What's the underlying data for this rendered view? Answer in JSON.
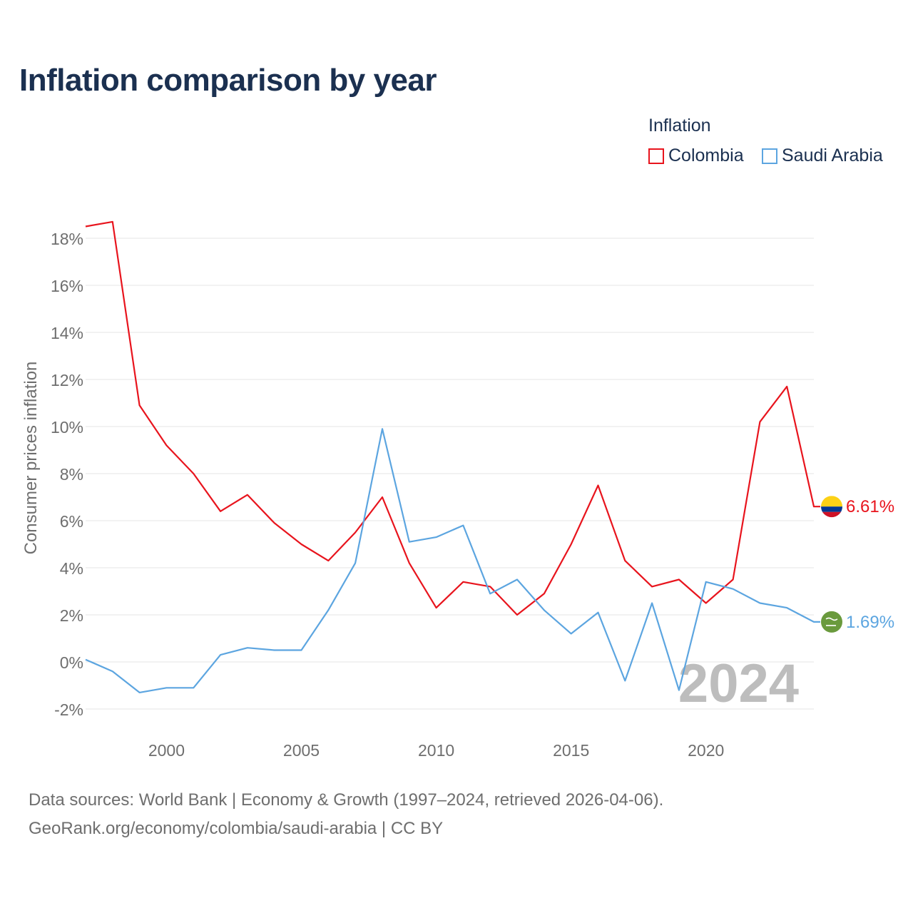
{
  "title": "Inflation comparison by year",
  "legend": {
    "title": "Inflation",
    "items": [
      {
        "label": "Colombia",
        "color": "#e8141d"
      },
      {
        "label": "Saudi Arabia",
        "color": "#5ca5e0"
      }
    ]
  },
  "chart_data": {
    "type": "line",
    "title": "Inflation comparison by year",
    "xlabel": "",
    "ylabel": "Consumer prices inflation",
    "xlim": [
      1997,
      2024
    ],
    "ylim": [
      -2,
      18
    ],
    "x_ticks": [
      2000,
      2005,
      2010,
      2015,
      2020
    ],
    "y_ticks": [
      -2,
      0,
      2,
      4,
      6,
      8,
      10,
      12,
      14,
      16,
      18
    ],
    "y_tick_labels": [
      "-2%",
      "0%",
      "2%",
      "4%",
      "6%",
      "8%",
      "10%",
      "12%",
      "14%",
      "16%",
      "18%"
    ],
    "grid": "horizontal",
    "year_watermark": "2024",
    "x": [
      1997,
      1998,
      1999,
      2000,
      2001,
      2002,
      2003,
      2004,
      2005,
      2006,
      2007,
      2008,
      2009,
      2010,
      2011,
      2012,
      2013,
      2014,
      2015,
      2016,
      2017,
      2018,
      2019,
      2020,
      2021,
      2022,
      2023,
      2024
    ],
    "series": [
      {
        "name": "Colombia",
        "color": "#e8141d",
        "end_label": "6.61%",
        "flag": "colombia-flag",
        "values": [
          18.5,
          18.7,
          10.9,
          9.2,
          8.0,
          6.4,
          7.1,
          5.9,
          5.0,
          4.3,
          5.5,
          7.0,
          4.2,
          2.3,
          3.4,
          3.2,
          2.0,
          2.9,
          5.0,
          7.5,
          4.3,
          3.2,
          3.5,
          2.5,
          3.5,
          10.2,
          11.7,
          6.6
        ]
      },
      {
        "name": "Saudi Arabia",
        "color": "#5ca5e0",
        "end_label": "1.69%",
        "flag": "saudi-arabia-flag",
        "values": [
          0.1,
          -0.4,
          -1.3,
          -1.1,
          -1.1,
          0.3,
          0.6,
          0.5,
          0.5,
          2.2,
          4.2,
          9.9,
          5.1,
          5.3,
          5.8,
          2.9,
          3.5,
          2.2,
          1.2,
          2.1,
          -0.8,
          2.5,
          -1.2,
          3.4,
          3.1,
          2.5,
          2.3,
          1.7
        ]
      }
    ]
  },
  "footer": {
    "line1": "Data sources: World Bank | Economy & Growth (1997–2024, retrieved 2026-04-06).",
    "line2": "GeoRank.org/economy/colombia/saudi-arabia | CC BY"
  }
}
